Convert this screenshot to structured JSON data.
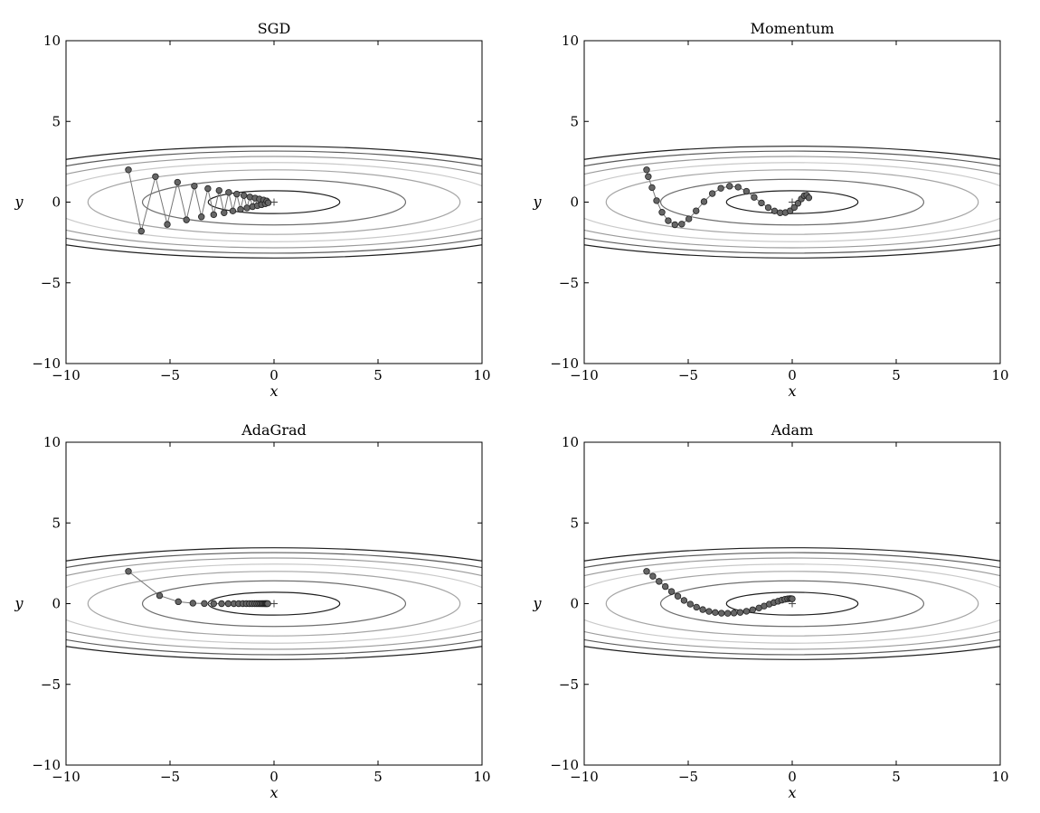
{
  "chart_data": [
    {
      "type": "line",
      "title": "SGD",
      "xlabel": "x",
      "ylabel": "y",
      "xlim": [
        -10,
        10
      ],
      "ylim": [
        -10,
        10
      ],
      "xticks": [
        -10,
        -5,
        0,
        5,
        10
      ],
      "yticks": [
        -10,
        -5,
        0,
        5,
        10
      ],
      "xtick_labels": [
        "−10",
        "−5",
        "0",
        "5",
        "10"
      ],
      "ytick_labels": [
        "−10",
        "−5",
        "0",
        "5",
        "10"
      ],
      "contour_levels": [
        0.5,
        2,
        4,
        6,
        8,
        10,
        12
      ],
      "minimum": [
        0,
        0
      ],
      "grid": false,
      "series": [
        {
          "x": [
            -7.0,
            -6.38,
            -5.7,
            -5.13,
            -4.64,
            -4.21,
            -3.83,
            -3.49,
            -3.18,
            -2.9,
            -2.64,
            -2.4,
            -2.18,
            -1.98,
            -1.79,
            -1.61,
            -1.45,
            -1.3,
            -1.16,
            -1.03,
            -0.91,
            -0.8,
            -0.7,
            -0.6,
            -0.5,
            -0.42,
            -0.35,
            -0.28
          ],
          "y": [
            2.0,
            -1.8,
            1.58,
            -1.38,
            1.23,
            -1.1,
            1.0,
            -0.91,
            0.84,
            -0.78,
            0.72,
            -0.66,
            0.6,
            -0.55,
            0.5,
            -0.45,
            0.41,
            -0.36,
            0.32,
            -0.28,
            0.25,
            -0.22,
            0.19,
            -0.16,
            0.13,
            -0.1,
            0.07,
            -0.04
          ]
        }
      ]
    },
    {
      "type": "line",
      "title": "Momentum",
      "xlabel": "x",
      "ylabel": "y",
      "xlim": [
        -10,
        10
      ],
      "ylim": [
        -10,
        10
      ],
      "xticks": [
        -10,
        -5,
        0,
        5,
        10
      ],
      "yticks": [
        -10,
        -5,
        0,
        5,
        10
      ],
      "xtick_labels": [
        "−10",
        "−5",
        "0",
        "5",
        "10"
      ],
      "ytick_labels": [
        "−10",
        "−5",
        "0",
        "5",
        "10"
      ],
      "contour_levels": [
        0.5,
        2,
        4,
        6,
        8,
        10,
        12
      ],
      "minimum": [
        0,
        0
      ],
      "grid": false,
      "series": [
        {
          "x": [
            -7.0,
            -6.92,
            -6.74,
            -6.52,
            -6.26,
            -5.96,
            -5.64,
            -5.31,
            -4.97,
            -4.62,
            -4.24,
            -3.84,
            -3.43,
            -3.01,
            -2.6,
            -2.2,
            -1.83,
            -1.48,
            -1.15,
            -0.85,
            -0.58,
            -0.33,
            -0.1,
            0.1,
            0.28,
            0.44,
            0.58,
            0.7,
            0.8
          ],
          "y": [
            2.0,
            1.58,
            0.9,
            0.09,
            -0.63,
            -1.15,
            -1.4,
            -1.36,
            -1.04,
            -0.54,
            0.03,
            0.53,
            0.86,
            0.99,
            0.93,
            0.67,
            0.3,
            -0.05,
            -0.34,
            -0.55,
            -0.66,
            -0.65,
            -0.54,
            -0.33,
            -0.07,
            0.2,
            0.4,
            0.43,
            0.27
          ]
        }
      ]
    },
    {
      "type": "line",
      "title": "AdaGrad",
      "xlabel": "x",
      "ylabel": "y",
      "xlim": [
        -10,
        10
      ],
      "ylim": [
        -10,
        10
      ],
      "xticks": [
        -10,
        -5,
        0,
        5,
        10
      ],
      "yticks": [
        -10,
        -5,
        0,
        5,
        10
      ],
      "xtick_labels": [
        "−10",
        "−5",
        "0",
        "5",
        "10"
      ],
      "ytick_labels": [
        "−10",
        "−5",
        "0",
        "5",
        "10"
      ],
      "contour_levels": [
        0.5,
        2,
        4,
        6,
        8,
        10,
        12
      ],
      "minimum": [
        0,
        0
      ],
      "grid": false,
      "series": [
        {
          "x": [
            -7.0,
            -5.5,
            -4.6,
            -3.9,
            -3.35,
            -2.9,
            -2.52,
            -2.2,
            -1.93,
            -1.7,
            -1.5,
            -1.33,
            -1.18,
            -1.05,
            -0.93,
            -0.83,
            -0.74,
            -0.66,
            -0.59,
            -0.53,
            -0.47,
            -0.42,
            -0.38,
            -0.34,
            -0.3
          ],
          "y": [
            2.0,
            0.5,
            0.12,
            0.03,
            0.01,
            0.0,
            0.0,
            0.0,
            0.0,
            0.0,
            0.0,
            0.0,
            0.0,
            0.0,
            0.0,
            0.0,
            0.0,
            0.0,
            0.0,
            0.0,
            0.0,
            0.0,
            0.0,
            0.0,
            0.0
          ]
        }
      ]
    },
    {
      "type": "line",
      "title": "Adam",
      "xlabel": "x",
      "ylabel": "y",
      "xlim": [
        -10,
        10
      ],
      "ylim": [
        -10,
        10
      ],
      "xticks": [
        -10,
        -5,
        0,
        5,
        10
      ],
      "yticks": [
        -10,
        -5,
        0,
        5,
        10
      ],
      "xtick_labels": [
        "−10",
        "−5",
        "0",
        "5",
        "10"
      ],
      "ytick_labels": [
        "−10",
        "−5",
        "0",
        "5",
        "10"
      ],
      "contour_levels": [
        0.5,
        2,
        4,
        6,
        8,
        10,
        12
      ],
      "minimum": [
        0,
        0
      ],
      "grid": false,
      "series": [
        {
          "x": [
            -7.0,
            -6.7,
            -6.4,
            -6.1,
            -5.8,
            -5.5,
            -5.2,
            -4.9,
            -4.6,
            -4.3,
            -4.0,
            -3.7,
            -3.4,
            -3.1,
            -2.8,
            -2.5,
            -2.2,
            -1.9,
            -1.6,
            -1.35,
            -1.1,
            -0.88,
            -0.68,
            -0.5,
            -0.35,
            -0.22,
            -0.12,
            -0.05,
            0.0
          ],
          "y": [
            2.0,
            1.7,
            1.38,
            1.06,
            0.75,
            0.46,
            0.2,
            -0.03,
            -0.22,
            -0.37,
            -0.48,
            -0.55,
            -0.59,
            -0.6,
            -0.58,
            -0.54,
            -0.47,
            -0.38,
            -0.27,
            -0.15,
            -0.03,
            0.07,
            0.15,
            0.22,
            0.27,
            0.3,
            0.31,
            0.31,
            0.3
          ]
        }
      ]
    }
  ]
}
